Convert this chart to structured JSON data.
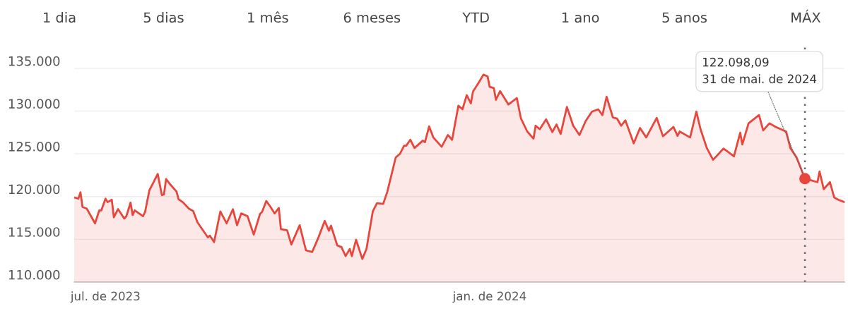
{
  "chart_data": {
    "type": "area",
    "annotations": [
      "1 dia",
      "5 dias",
      "1 mês",
      "6 meses",
      "YTD",
      "1 ano",
      "5 anos",
      "MÁX",
      {
        "text": "122.098,09\n31 de mai. de 2024",
        "x": "2024-05-31",
        "y": 122098.09
      }
    ],
    "series": [
      {
        "color": "#e8453c",
        "x": [
          "2023-06-16",
          "2023-06-18",
          "2023-06-19",
          "2023-06-20",
          "2023-06-22",
          "2023-06-26",
          "2023-06-28",
          "2023-06-29",
          "2023-07-01",
          "2023-07-02",
          "2023-07-04",
          "2023-07-05",
          "2023-07-07",
          "2023-07-10",
          "2023-07-11",
          "2023-07-13",
          "2023-07-14",
          "2023-07-15",
          "2023-07-19",
          "2023-07-20",
          "2023-07-22",
          "2023-07-24",
          "2023-07-26",
          "2023-07-28",
          "2023-07-29",
          "2023-07-30",
          "2023-08-01",
          "2023-08-04",
          "2023-08-05",
          "2023-08-07",
          "2023-08-10",
          "2023-08-12",
          "2023-08-14",
          "2023-08-19",
          "2023-08-20",
          "2023-08-22",
          "2023-08-25",
          "2023-08-28",
          "2023-08-31",
          "2023-09-02",
          "2023-09-04",
          "2023-09-07",
          "2023-09-10",
          "2023-09-13",
          "2023-09-14",
          "2023-09-16",
          "2023-09-18",
          "2023-09-20",
          "2023-09-22",
          "2023-09-23",
          "2023-09-26",
          "2023-09-28",
          "2023-10-02",
          "2023-10-05",
          "2023-10-08",
          "2023-10-11",
          "2023-10-14",
          "2023-10-16",
          "2023-10-17",
          "2023-10-20",
          "2023-10-22",
          "2023-10-24",
          "2023-10-26",
          "2023-10-27",
          "2023-10-29",
          "2023-11-01",
          "2023-11-03",
          "2023-11-06",
          "2023-11-08",
          "2023-11-11",
          "2023-11-13",
          "2023-11-17",
          "2023-11-19",
          "2023-11-21",
          "2023-11-22",
          "2023-11-24",
          "2023-11-26",
          "2023-11-30",
          "2023-12-01",
          "2023-12-03",
          "2023-12-05",
          "2023-12-09",
          "2023-12-12",
          "2023-12-14",
          "2023-12-17",
          "2023-12-19",
          "2023-12-21",
          "2023-12-23",
          "2023-12-24",
          "2023-12-27",
          "2023-12-29",
          "2023-12-31",
          "2024-01-01",
          "2024-01-03",
          "2024-01-04",
          "2024-01-06",
          "2024-01-10",
          "2024-01-14",
          "2024-01-16",
          "2024-01-19",
          "2024-01-22",
          "2024-01-23",
          "2024-01-25",
          "2024-01-28",
          "2024-01-31",
          "2024-02-02",
          "2024-02-04",
          "2024-02-07",
          "2024-02-10",
          "2024-02-13",
          "2024-02-16",
          "2024-02-19",
          "2024-02-22",
          "2024-02-24",
          "2024-02-26",
          "2024-02-29",
          "2024-03-02",
          "2024-03-04",
          "2024-03-06",
          "2024-03-10",
          "2024-03-13",
          "2024-03-16",
          "2024-03-21",
          "2024-03-24",
          "2024-03-29",
          "2024-03-31",
          "2024-04-01",
          "2024-04-06",
          "2024-04-09",
          "2024-04-11",
          "2024-04-14",
          "2024-04-17",
          "2024-04-22",
          "2024-04-27",
          "2024-04-30",
          "2024-05-01",
          "2024-05-04",
          "2024-05-09",
          "2024-05-11",
          "2024-05-14",
          "2024-05-17",
          "2024-05-22",
          "2024-05-24",
          "2024-05-27",
          "2024-05-31",
          "2024-06-06",
          "2024-06-07",
          "2024-06-09",
          "2024-06-12",
          "2024-06-14",
          "2024-06-16",
          "2024-06-19"
        ],
        "values": [
          119900,
          119760,
          120500,
          118780,
          118600,
          116870,
          118390,
          118390,
          119760,
          119350,
          119630,
          117570,
          118540,
          117430,
          117710,
          119300,
          117840,
          118390,
          117710,
          118250,
          120730,
          121690,
          122650,
          120170,
          120250,
          122050,
          121420,
          120590,
          119680,
          119350,
          118580,
          118310,
          117010,
          115230,
          115430,
          114680,
          118250,
          116870,
          118520,
          116650,
          118030,
          117710,
          115560,
          117980,
          118200,
          119490,
          118800,
          118030,
          118670,
          116190,
          116050,
          114400,
          116650,
          113710,
          113520,
          115230,
          117160,
          116000,
          116600,
          114290,
          114090,
          113040,
          113870,
          113040,
          114950,
          112710,
          113870,
          118250,
          119220,
          119140,
          120590,
          124580,
          124990,
          125950,
          125950,
          126640,
          125680,
          126550,
          126360,
          128210,
          126920,
          125820,
          127200,
          126640,
          130630,
          130210,
          131860,
          130900,
          132280,
          133430,
          134260,
          134070,
          132830,
          132690,
          131320,
          132340,
          130770,
          131520,
          129120,
          127610,
          126780,
          128290,
          127880,
          129040,
          127550,
          128430,
          127330,
          130490,
          128290,
          127200,
          128850,
          129940,
          130210,
          129530,
          131670,
          129260,
          129120,
          128290,
          128920,
          126230,
          128020,
          126920,
          129200,
          127060,
          128150,
          127110,
          127610,
          126920,
          129940,
          127880,
          125680,
          124300,
          125620,
          124710,
          127470,
          126090,
          128570,
          129530,
          127740,
          128570,
          128150,
          127610,
          125680,
          124580,
          122098.09,
          121690,
          122930,
          120870,
          121690,
          119900,
          119630,
          119350
        ]
      }
    ],
    "xlim": [
      "2023-06-16",
      "2024-06-19"
    ],
    "xticks": [
      {
        "value": "2023-07-01",
        "label": "jul. de 2023"
      },
      {
        "value": "2024-01-01",
        "label": "jan. de 2024"
      }
    ],
    "ylim": [
      110000,
      137500
    ],
    "yticks": [
      {
        "value": 110000,
        "label": "110.000"
      },
      {
        "value": 115000,
        "label": "115.000"
      },
      {
        "value": 120000,
        "label": "120.000"
      },
      {
        "value": 125000,
        "label": "125.000"
      },
      {
        "value": 130000,
        "label": "130.000"
      },
      {
        "value": 135000,
        "label": "135.000"
      }
    ],
    "ref_lines": [
      {
        "axis": "x",
        "value": "2024-05-31",
        "label": null,
        "color": "#666666",
        "line_style": "dotted"
      }
    ],
    "grid": "y",
    "legend": false
  }
}
